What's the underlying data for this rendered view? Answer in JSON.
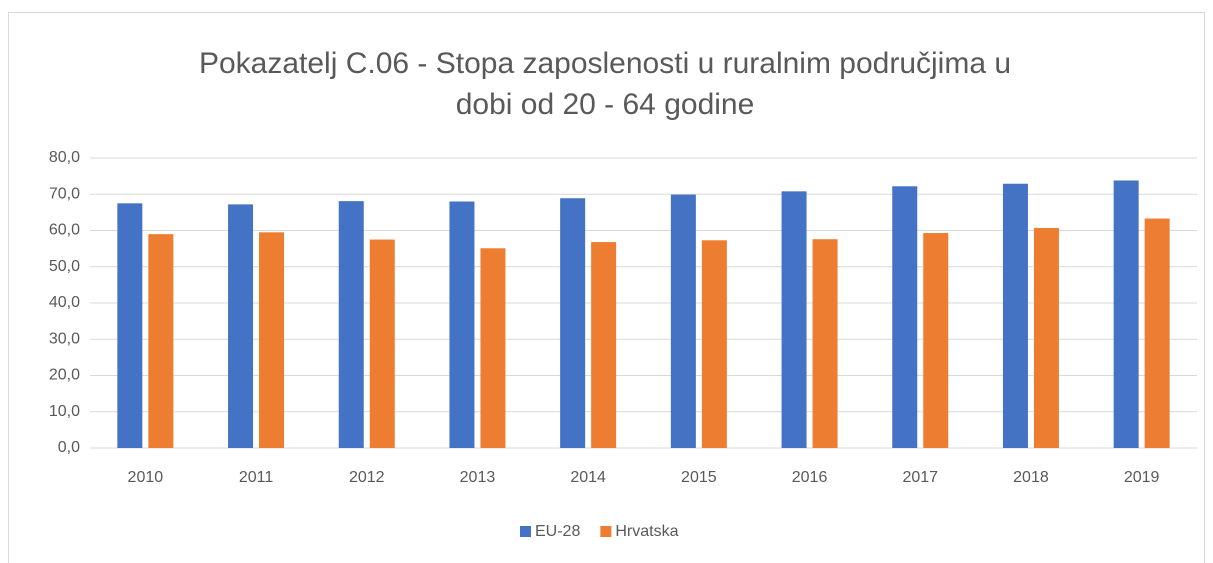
{
  "chart_data": {
    "type": "bar",
    "title_lines": [
      "Pokazatelj C.06 - Stopa zaposlenosti u ruralnim područjima u",
      "dobi od 20 - 64 godine"
    ],
    "categories": [
      "2010",
      "2011",
      "2012",
      "2013",
      "2014",
      "2015",
      "2016",
      "2017",
      "2018",
      "2019"
    ],
    "series": [
      {
        "name": "EU-28",
        "color": "#4472c4",
        "values": [
          67.5,
          67.2,
          68.1,
          68.0,
          68.9,
          69.9,
          70.8,
          72.2,
          72.9,
          73.8
        ]
      },
      {
        "name": "Hrvatska",
        "color": "#ed7d31",
        "values": [
          59.0,
          59.5,
          57.5,
          55.1,
          56.8,
          57.3,
          57.6,
          59.3,
          60.7,
          63.3
        ]
      }
    ],
    "ylim": [
      0,
      80
    ],
    "yticks": [
      {
        "value": 0,
        "label": "0,0"
      },
      {
        "value": 10,
        "label": "10,0"
      },
      {
        "value": 20,
        "label": "20,0"
      },
      {
        "value": 30,
        "label": "30,0"
      },
      {
        "value": 40,
        "label": "40,0"
      },
      {
        "value": 50,
        "label": "50,0"
      },
      {
        "value": 60,
        "label": "60,0"
      },
      {
        "value": 70,
        "label": "70,0"
      },
      {
        "value": 80,
        "label": "80,0"
      }
    ],
    "grid": true,
    "legend": "bottom"
  }
}
